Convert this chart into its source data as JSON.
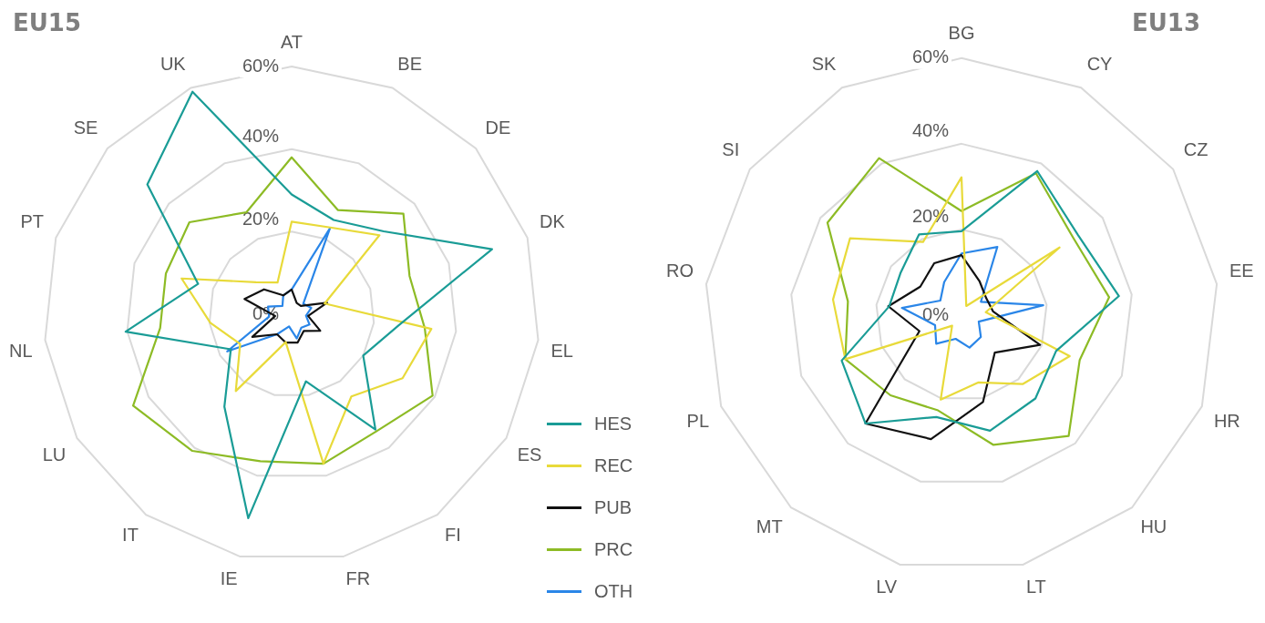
{
  "chart_data": [
    {
      "type": "radar",
      "title": "EU15",
      "categories": [
        "AT",
        "BE",
        "DE",
        "DK",
        "EL",
        "ES",
        "FI",
        "FR",
        "IE",
        "IT",
        "LU",
        "NL",
        "PT",
        "SE",
        "UK"
      ],
      "ylim": [
        0,
        60
      ],
      "yticks": [
        {
          "value": 0,
          "label": "0%"
        },
        {
          "value": 20,
          "label": "20%"
        },
        {
          "value": 40,
          "label": "40%"
        },
        {
          "value": 60,
          "label": "60%"
        }
      ],
      "grid": true,
      "legend": "bottom right",
      "marker": "none",
      "line_style": "solid",
      "series": [
        {
          "name": "HES",
          "color": "#1a9c96",
          "values": [
            29,
            25,
            30,
            51,
            26,
            20,
            34.5,
            16.6,
            50.5,
            27.7,
            17,
            40.4,
            23.8,
            47,
            59
          ]
        },
        {
          "name": "REC",
          "color": "#e8da3a",
          "values": [
            22.4,
            23,
            28.6,
            8.4,
            34,
            31,
            24.6,
            37,
            6.9,
            23,
            14.4,
            19.8,
            28,
            11.6,
            8.4
          ]
        },
        {
          "name": "PUB",
          "color": "#111111",
          "values": [
            6,
            3,
            3,
            9,
            4,
            8,
            5,
            7,
            7,
            6,
            11,
            4,
            12,
            9,
            5
          ]
        },
        {
          "name": "PRC",
          "color": "#8dbb25",
          "values": [
            38,
            27.6,
            36.4,
            30,
            32.4,
            39.4,
            35,
            37,
            36.4,
            40.9,
            44.3,
            32,
            32,
            33.3,
            27
          ]
        },
        {
          "name": "OTH",
          "color": "#2a86e8",
          "values": [
            6,
            22.8,
            3.8,
            5,
            3.5,
            5,
            4,
            6,
            3,
            6,
            18,
            5.5,
            6,
            3,
            5
          ]
        }
      ]
    },
    {
      "type": "radar",
      "title": "EU13",
      "categories": [
        "BG",
        "CY",
        "CZ",
        "EE",
        "HR",
        "HU",
        "LT",
        "LV",
        "MT",
        "PL",
        "RO",
        "SI",
        "SK"
      ],
      "ylim": [
        0,
        60
      ],
      "yticks": [
        {
          "value": 0,
          "label": "0%"
        },
        {
          "value": 20,
          "label": "20%"
        },
        {
          "value": 40,
          "label": "40%"
        },
        {
          "value": 60,
          "label": "60%"
        }
      ],
      "grid": true,
      "marker": "none",
      "line_style": "solid",
      "series": [
        {
          "color": "#1a9c96",
          "values": [
            19.6,
            38,
            33,
            37,
            23.6,
            26,
            27.8,
            24.5,
            33.8,
            29.9,
            17,
            17.3,
            21.3
          ]
        },
        {
          "color": "#e8da3a",
          "values": [
            32.2,
            2.4,
            27.8,
            5.7,
            27,
            21.5,
            16.2,
            20.3,
            3.3,
            29,
            30.2,
            31.6,
            19.3
          ]
        },
        {
          "color": "#111111",
          "values": [
            14,
            9,
            7,
            7.4,
            19.6,
            11.7,
            20.9,
            29.8,
            33.8,
            10.5,
            17.2,
            11.7,
            13.7
          ]
        },
        {
          "color": "#8dbb25",
          "values": [
            24.3,
            37.4,
            31.7,
            34.7,
            29.5,
            37.7,
            31.2,
            22.9,
            25,
            29,
            26.7,
            38,
            41.4
          ]
        },
        {
          "color": "#2a86e8",
          "values": [
            14.4,
            18,
            5.5,
            19.2,
            4.3,
            6.8,
            7.8,
            5.7,
            8.9,
            6.6,
            14,
            6,
            8.7
          ]
        }
      ]
    }
  ]
}
